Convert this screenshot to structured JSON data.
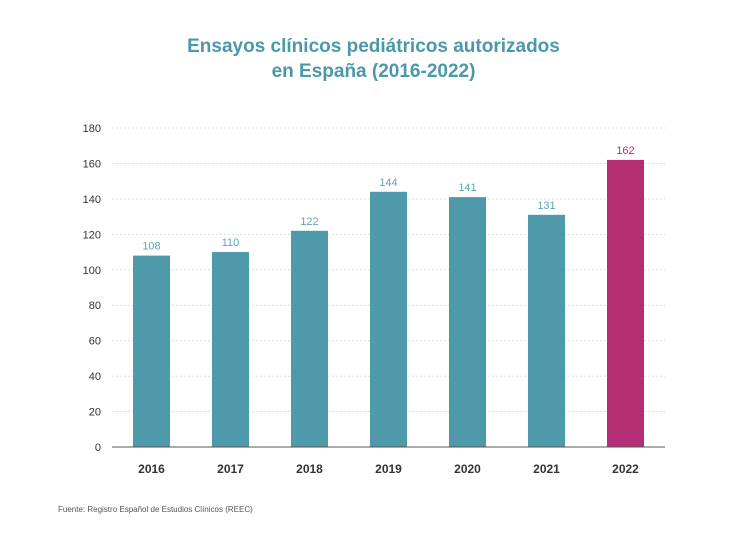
{
  "chart_data": {
    "type": "bar",
    "title_lines": [
      "Ensayos clínicos pediátricos autorizados",
      "en España (2016-2022)"
    ],
    "categories": [
      "2016",
      "2017",
      "2018",
      "2019",
      "2020",
      "2021",
      "2022"
    ],
    "values": [
      108,
      110,
      122,
      144,
      141,
      131,
      162
    ],
    "data_labels": [
      "108",
      "110",
      "122",
      "144",
      "141",
      "131",
      "162"
    ],
    "yticks": [
      "0",
      "20",
      "40",
      "60",
      "80",
      "100",
      "120",
      "140",
      "160",
      "180"
    ],
    "ylim": [
      0,
      180
    ],
    "grid": true,
    "xlabel": "",
    "ylabel": "",
    "colors": {
      "bar": "#4e9aab",
      "highlight": "#b42e76",
      "label": "#5ba5b5",
      "highlight_label": "#b42e76",
      "grid": "#dcdcdc",
      "axis": "#555555",
      "tick": "#333333"
    },
    "highlight_index": 6
  },
  "source": "Fuente: Registro Español de Estudios Clínicos (REEC)"
}
